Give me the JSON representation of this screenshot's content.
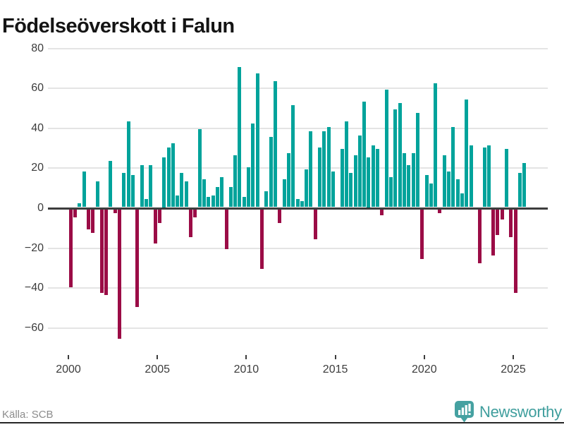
{
  "title": "Födelseöverskott i Falun",
  "footer": {
    "source": "Källa: SCB",
    "brand": "Newsworthy"
  },
  "colors": {
    "positive": "#00a39b",
    "negative": "#9b0c46",
    "brand_teal": "#45a1a1",
    "grid": "#e4e4e4",
    "zero_axis": "#3d3d3d"
  },
  "chart_data": {
    "type": "bar",
    "title": "Födelseöverskott i Falun",
    "x_unit": "quarter",
    "start_period": "2000 Q1",
    "end_period": "2025 Q3",
    "x_tick_labels": [
      "2000",
      "2005",
      "2010",
      "2015",
      "2020",
      "2025"
    ],
    "y_ticks": [
      80,
      60,
      40,
      20,
      0,
      -20,
      -40,
      -60
    ],
    "y_tick_labels": [
      "80",
      "60",
      "40",
      "20",
      "0",
      "−20",
      "−40",
      "−60"
    ],
    "ylim": [
      -70,
      85
    ],
    "grid": "horizontal",
    "legend": "none",
    "values": [
      -39,
      -4,
      2,
      18,
      -10,
      -12,
      13,
      -42,
      -43,
      23,
      -2,
      -65,
      17,
      43,
      16,
      -49,
      21,
      4,
      21,
      -17,
      -7,
      25,
      30,
      32,
      6,
      17,
      13,
      -14,
      -4,
      39,
      14,
      5,
      6,
      10,
      15,
      -20,
      10,
      26,
      70,
      5,
      20,
      42,
      67,
      -30,
      8,
      35,
      63,
      -7,
      14,
      27,
      51,
      4,
      3,
      19,
      38,
      -15,
      30,
      38,
      40,
      18,
      0,
      29,
      43,
      17,
      26,
      36,
      53,
      25,
      31,
      29,
      -3,
      59,
      15,
      49,
      52,
      27,
      21,
      27,
      47,
      -25,
      16,
      12,
      62,
      -2,
      26,
      18,
      40,
      14,
      7,
      54,
      31,
      0,
      -27,
      30,
      31,
      -23,
      -13,
      -5,
      29,
      -14,
      -42,
      17,
      22
    ]
  }
}
